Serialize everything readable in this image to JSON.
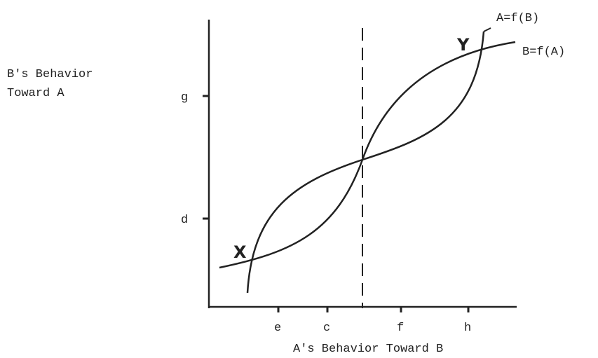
{
  "y_axis_label": [
    "B's Behavior",
    "Toward A"
  ],
  "x_axis_label": "A's Behavior Toward B",
  "y_ticks": [
    "g",
    "d"
  ],
  "x_ticks": [
    "e",
    "c",
    "f",
    "h"
  ],
  "curves": [
    "A=f(B)",
    "B=f(A)"
  ],
  "points": [
    "X",
    "Y"
  ]
}
